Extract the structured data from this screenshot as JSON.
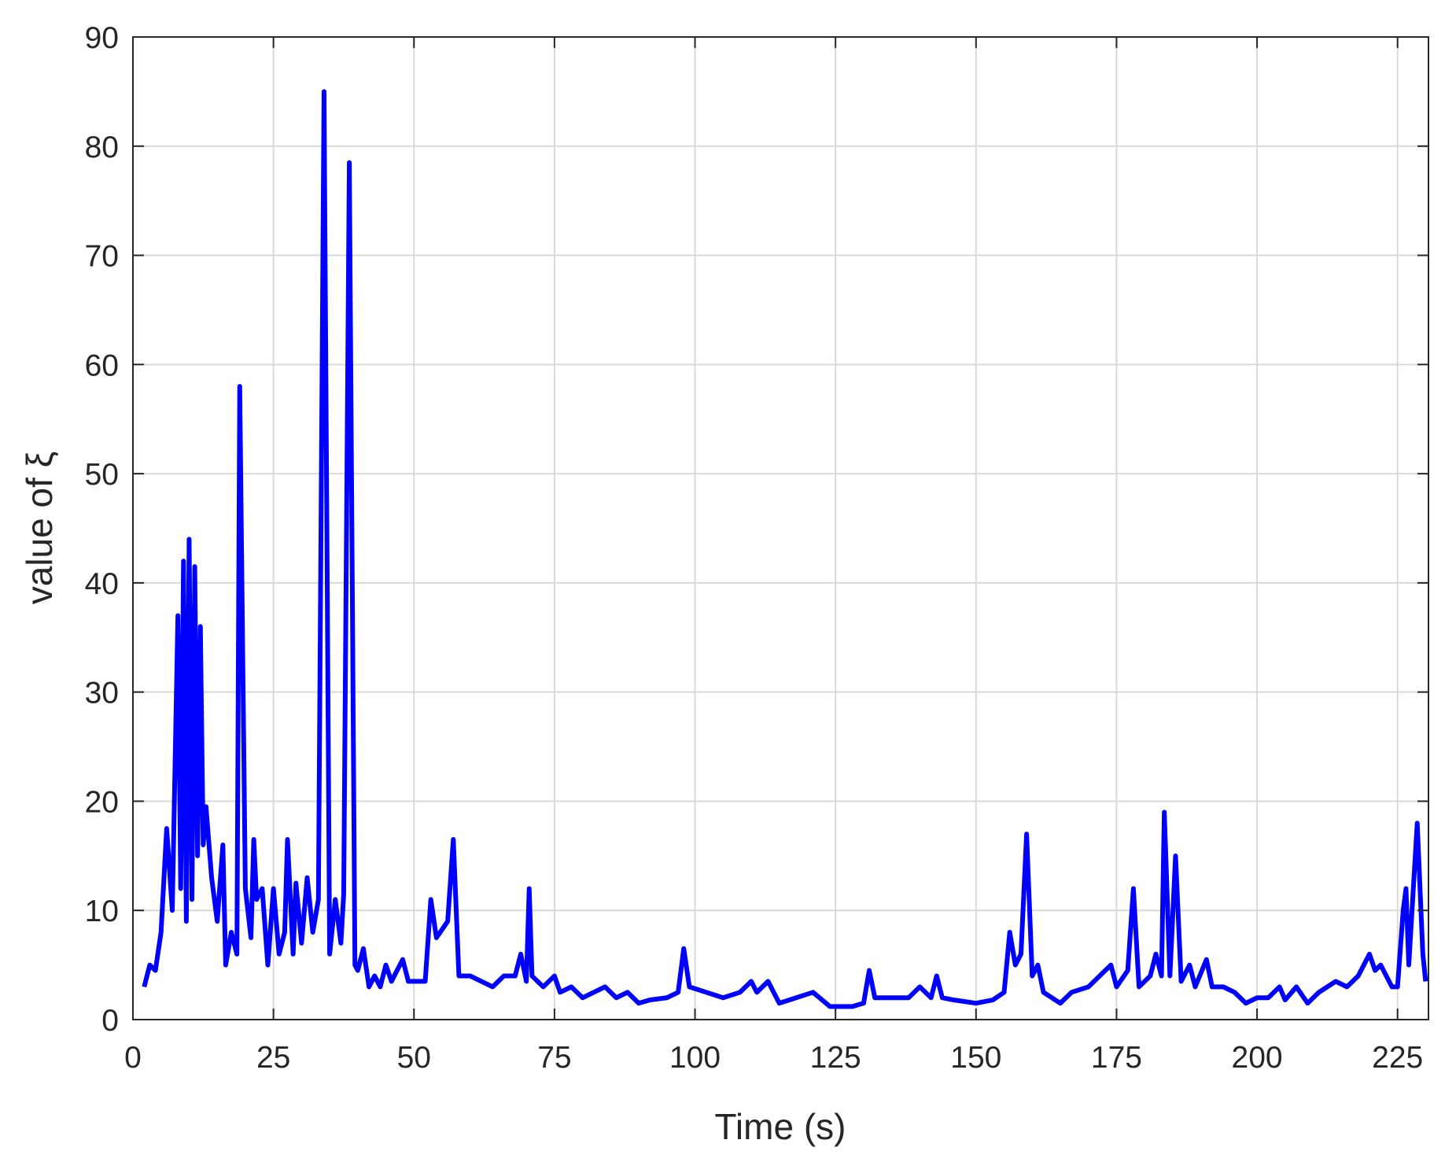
{
  "chart_data": {
    "type": "line",
    "x_label": "Time (s)",
    "y_label": "value of ξ",
    "xlim": [
      0,
      230.5
    ],
    "ylim": [
      0,
      90
    ],
    "xticks": [
      0,
      25,
      50,
      75,
      100,
      125,
      150,
      175,
      200,
      225
    ],
    "yticks": [
      0,
      10,
      20,
      30,
      40,
      50,
      60,
      70,
      80,
      90
    ],
    "grid": true,
    "series": [
      {
        "color": "#0000ff",
        "x": [
          2,
          3,
          4,
          5,
          6,
          7,
          8,
          8.5,
          9,
          9.5,
          10,
          10.5,
          11,
          11.5,
          12,
          12.5,
          13,
          14,
          15,
          16,
          16.5,
          17.5,
          18.5,
          19,
          20,
          21,
          21.5,
          22,
          23,
          24,
          25,
          26,
          27,
          27.5,
          28.5,
          29,
          30,
          31,
          32,
          33,
          34,
          35,
          36,
          37,
          37.5,
          38.5,
          39.5,
          40,
          41,
          42,
          43,
          44,
          45,
          46,
          48,
          49,
          52,
          53,
          54,
          56,
          57,
          58,
          60,
          62,
          64,
          66,
          68,
          69,
          70,
          70.5,
          71,
          73,
          75,
          76,
          78,
          80,
          82,
          84,
          86,
          88,
          90,
          92,
          95,
          97,
          98,
          99,
          102,
          105,
          108,
          110,
          111,
          113,
          115,
          118,
          121,
          124,
          128,
          130,
          131,
          132,
          135,
          138,
          140,
          142,
          143,
          144,
          146,
          150,
          153,
          155,
          156,
          157,
          158,
          159,
          160,
          161,
          162,
          165,
          167,
          170,
          172,
          174,
          175,
          177,
          178,
          179,
          181,
          182,
          183,
          183.5,
          184.5,
          185.5,
          186.5,
          188,
          189,
          191,
          192,
          194,
          196,
          198,
          200,
          202,
          204,
          205,
          207,
          209,
          211,
          214,
          216,
          218,
          220,
          221,
          222,
          224,
          225,
          226,
          226.5,
          227,
          228.5,
          229.5,
          230
        ],
        "values": [
          3,
          5,
          4.5,
          8,
          17.5,
          10,
          37,
          12,
          42,
          9,
          44,
          11,
          41.5,
          15,
          36,
          16,
          19.5,
          13,
          9,
          16,
          5,
          8,
          6,
          58,
          12,
          7.5,
          16.5,
          11,
          12,
          5,
          12,
          6,
          8,
          16.5,
          6,
          12.5,
          7,
          13,
          8,
          11,
          85,
          6,
          11,
          7,
          11.5,
          78.5,
          5,
          4.5,
          6.5,
          3,
          4,
          3,
          5,
          3.5,
          5.5,
          3.5,
          3.5,
          11,
          7.5,
          9,
          16.5,
          4,
          4,
          3.5,
          3,
          4,
          4,
          6,
          3.5,
          12,
          4,
          3,
          4,
          2.5,
          3,
          2,
          2.5,
          3,
          2,
          2.5,
          1.5,
          1.8,
          2,
          2.5,
          6.5,
          3,
          2.5,
          2,
          2.5,
          3.5,
          2.5,
          3.5,
          1.5,
          2,
          2.5,
          1.2,
          1.2,
          1.5,
          4.5,
          2,
          2,
          2,
          3,
          2,
          4,
          2,
          1.8,
          1.5,
          1.8,
          2.5,
          8,
          5,
          6,
          17,
          4,
          5,
          2.5,
          1.5,
          2.5,
          3,
          4,
          5,
          3,
          4.5,
          12,
          3,
          4,
          6,
          4,
          19,
          4,
          15,
          3.5,
          5,
          3,
          5.5,
          3,
          3,
          2.5,
          1.5,
          2,
          2,
          3,
          1.8,
          3,
          1.5,
          2.5,
          3.5,
          3,
          4,
          6,
          4.5,
          5,
          3,
          3,
          10,
          12,
          5,
          18,
          6,
          3.5
        ]
      }
    ]
  }
}
